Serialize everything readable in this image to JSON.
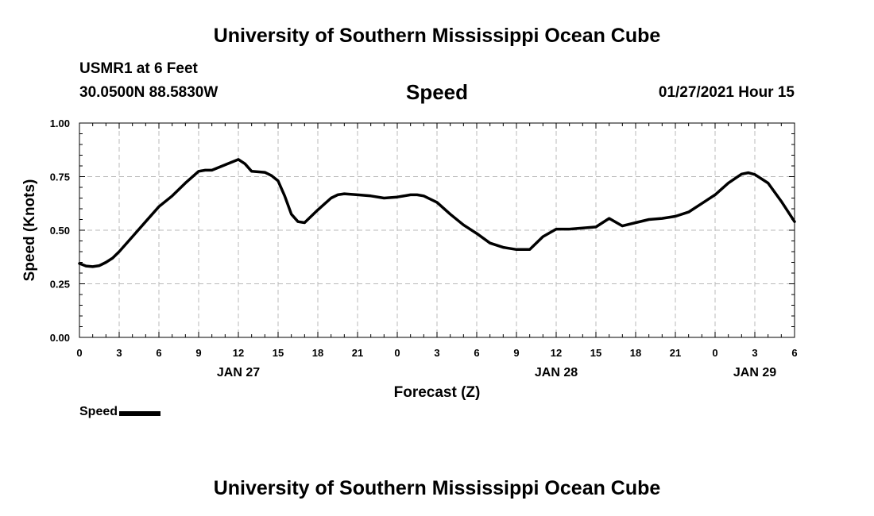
{
  "header": {
    "title": "University of Southern Mississippi Ocean Cube",
    "station": "USMR1 at 6 Feet",
    "coordinates": "30.0500N 88.5830W",
    "parameter": "Speed",
    "timestamp": "01/27/2021 Hour 15"
  },
  "footer": {
    "title": "University of Southern Mississippi Ocean Cube"
  },
  "legend": {
    "label": "Speed",
    "color": "#000000"
  },
  "chart_data": {
    "type": "line",
    "xlabel": "Forecast (Z)",
    "ylabel": "Speed (Knots)",
    "xlim": [
      0,
      54
    ],
    "ylim": [
      0,
      1
    ],
    "x_tick_labels": [
      "0",
      "3",
      "6",
      "9",
      "12",
      "15",
      "18",
      "21",
      "0",
      "3",
      "6",
      "9",
      "12",
      "15",
      "18",
      "21",
      "0",
      "3",
      "6"
    ],
    "y_tick_labels": [
      "0.00",
      "0.25",
      "0.50",
      "0.75",
      "1.00"
    ],
    "y_ticks": [
      0,
      0.25,
      0.5,
      0.75,
      1.0
    ],
    "date_labels": [
      {
        "label": "JAN 27",
        "x": 12
      },
      {
        "label": "JAN 28",
        "x": 36
      },
      {
        "label": "JAN 29",
        "x": 51
      }
    ],
    "grid": true,
    "series": [
      {
        "name": "Speed",
        "color": "#000000",
        "x": [
          0,
          0.5,
          1,
          1.5,
          2,
          2.5,
          3,
          4,
          5,
          6,
          7,
          8,
          9,
          9.5,
          10,
          11,
          12,
          12.5,
          13,
          14,
          14.5,
          15,
          15.5,
          16,
          16.5,
          17,
          18,
          19,
          19.5,
          20,
          21,
          22,
          23,
          24,
          25,
          25.5,
          26,
          27,
          28,
          29,
          30,
          31,
          32,
          33,
          34,
          35,
          36,
          37,
          38,
          39,
          40,
          41,
          42,
          43,
          44,
          45,
          46,
          47,
          48,
          49,
          50,
          50.5,
          51,
          52,
          53,
          54
        ],
        "y": [
          0.345,
          0.333,
          0.33,
          0.335,
          0.35,
          0.37,
          0.4,
          0.47,
          0.54,
          0.61,
          0.66,
          0.72,
          0.775,
          0.78,
          0.78,
          0.805,
          0.83,
          0.81,
          0.775,
          0.77,
          0.755,
          0.73,
          0.66,
          0.575,
          0.54,
          0.535,
          0.595,
          0.65,
          0.665,
          0.67,
          0.665,
          0.66,
          0.65,
          0.655,
          0.665,
          0.665,
          0.66,
          0.63,
          0.575,
          0.525,
          0.485,
          0.44,
          0.42,
          0.41,
          0.41,
          0.47,
          0.505,
          0.505,
          0.51,
          0.515,
          0.555,
          0.52,
          0.535,
          0.55,
          0.555,
          0.565,
          0.585,
          0.625,
          0.665,
          0.72,
          0.762,
          0.768,
          0.76,
          0.72,
          0.635,
          0.54
        ]
      }
    ]
  }
}
